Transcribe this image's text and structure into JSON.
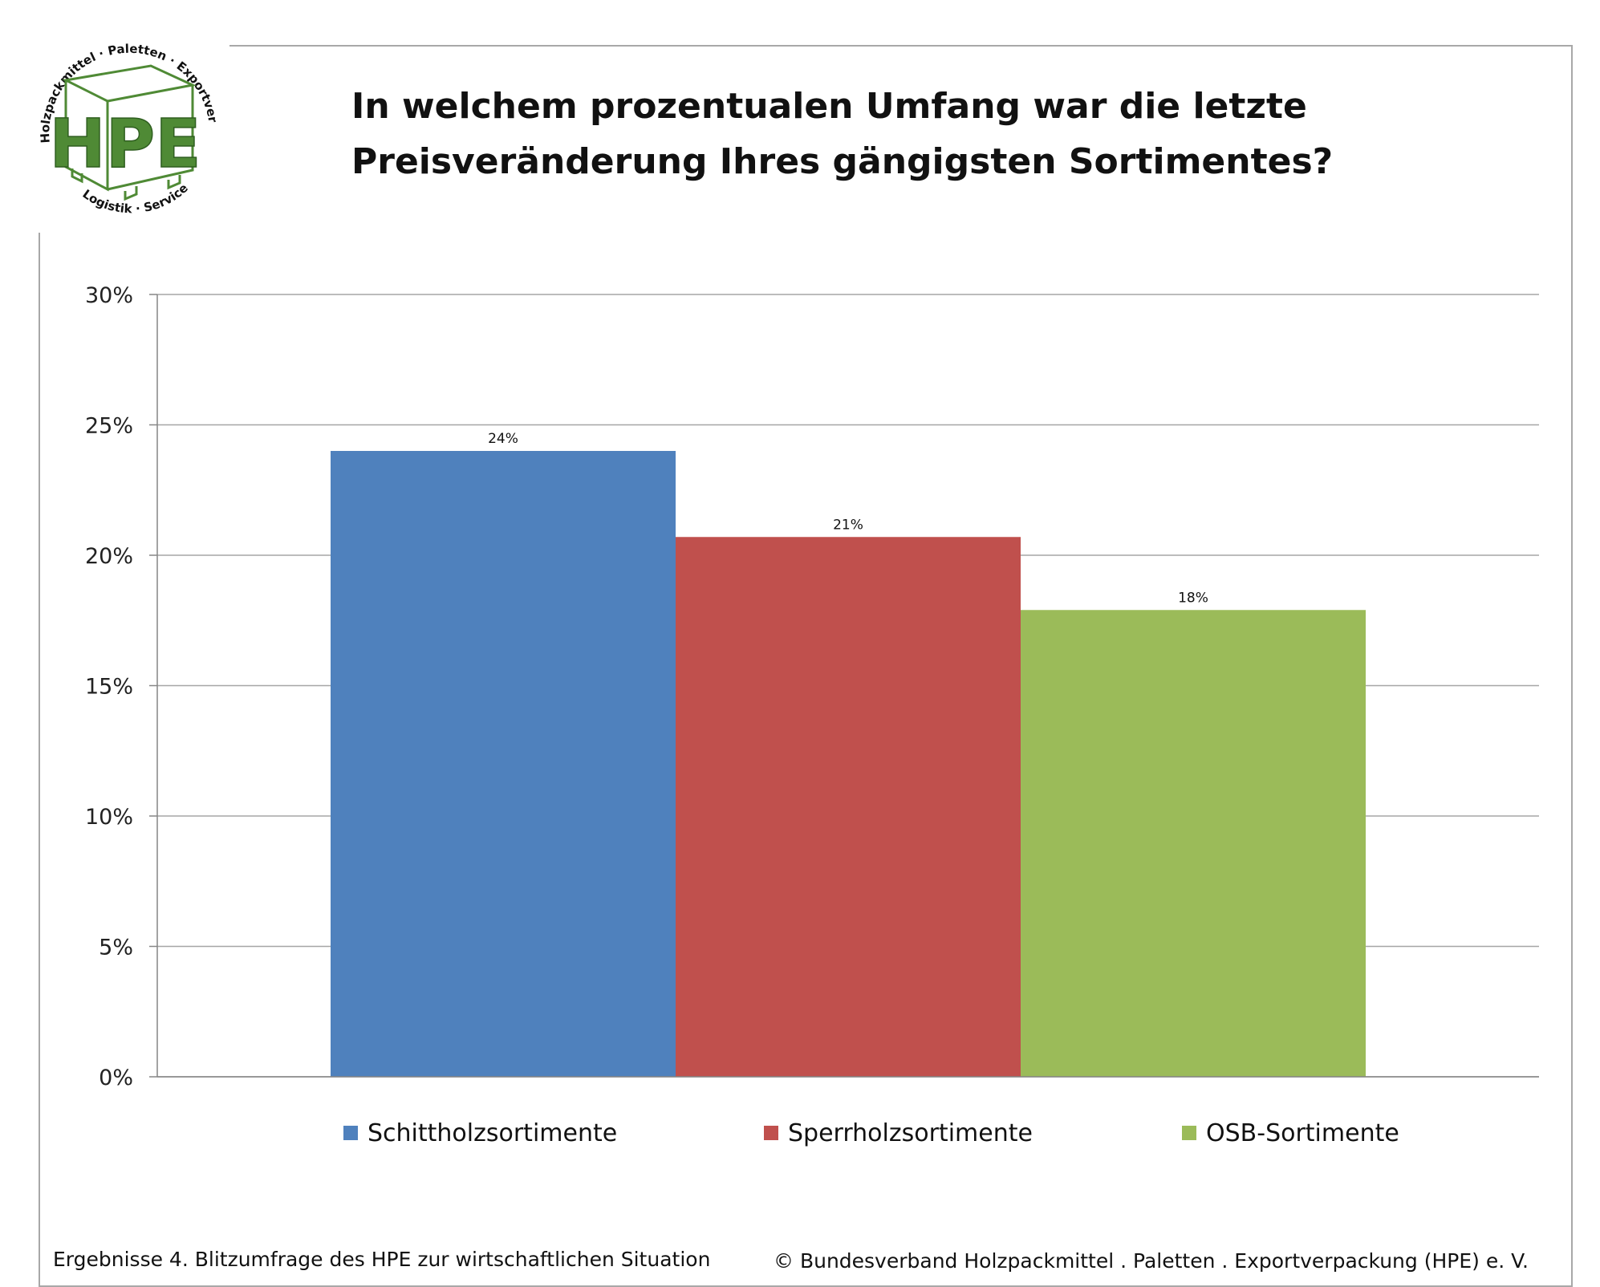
{
  "title": "In welchem prozentualen Umfang war die letzte Preisveränderung Ihres gängigsten Sortimentes?",
  "logo": {
    "mark": "HPE",
    "ring_top": "Holzpackmittel · Paletten · Exportverpackung",
    "ring_bottom": "Logistik · Service",
    "color": "#4f8a35"
  },
  "footer": {
    "left": "Ergebnisse 4. Blitzumfrage des HPE zur wirtschaftlichen Situation",
    "right": "© Bundesverband Holzpackmittel . Paletten . Exportverpackung (HPE) e. V."
  },
  "chart_data": {
    "type": "bar",
    "title": "In welchem prozentualen Umfang war die letzte Preisveränderung Ihres gängigsten Sortimentes?",
    "xlabel": "",
    "ylabel": "",
    "ylim": [
      0,
      30
    ],
    "yticks": [
      0,
      5,
      10,
      15,
      20,
      25,
      30
    ],
    "ytick_labels": [
      "0%",
      "5%",
      "10%",
      "15%",
      "20%",
      "25%",
      "30%"
    ],
    "grid": true,
    "legend_position": "bottom",
    "series": [
      {
        "name": "Schittholzsortimente",
        "value": 24,
        "label": "24%",
        "color": "#4f81bd"
      },
      {
        "name": "Sperrholzsortimente",
        "value": 20.7,
        "label": "21%",
        "color": "#c0504d"
      },
      {
        "name": "OSB-Sortimente",
        "value": 17.9,
        "label": "18%",
        "color": "#9bbb59"
      }
    ]
  }
}
